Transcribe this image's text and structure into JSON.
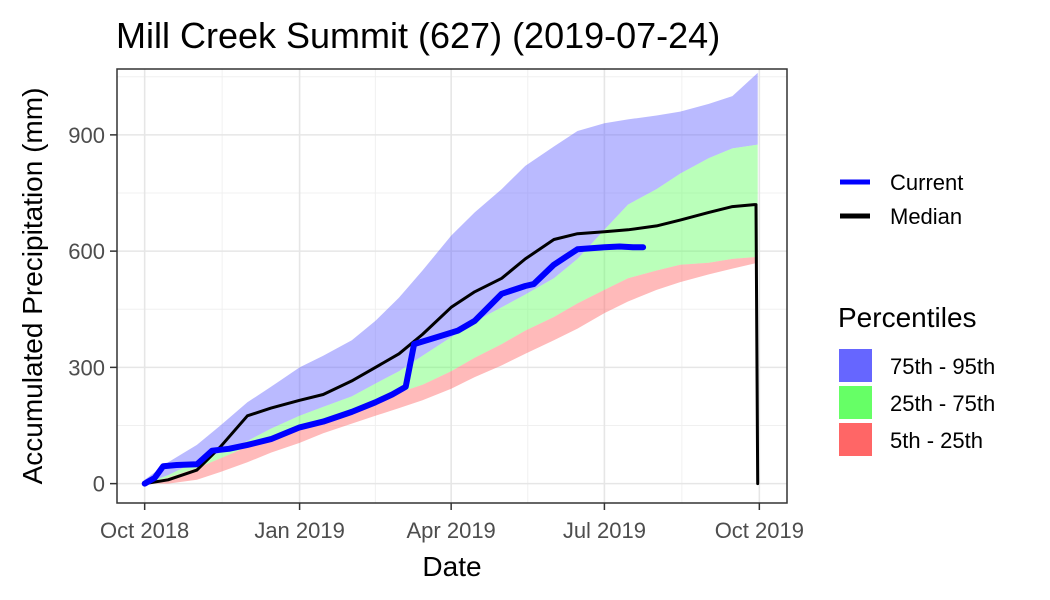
{
  "chart_data": {
    "type": "area",
    "title": "Mill Creek Summit (627) (2019-07-24)",
    "xlabel": "Date",
    "ylabel": "Accumulated Precipitation (mm)",
    "x_range": [
      "2018-10-01",
      "2019-10-01"
    ],
    "y_range": [
      -50,
      1070
    ],
    "x_ticks": [
      {
        "date": "2018-10-01",
        "label": "Oct 2018"
      },
      {
        "date": "2019-01-01",
        "label": "Jan 2019"
      },
      {
        "date": "2019-04-01",
        "label": "Apr 2019"
      },
      {
        "date": "2019-07-01",
        "label": "Jul 2019"
      },
      {
        "date": "2019-10-01",
        "label": "Oct 2019"
      }
    ],
    "y_ticks": [
      0,
      300,
      600,
      900
    ],
    "grid": true,
    "legend_placement": "right",
    "bands": [
      {
        "name": "75th - 95th",
        "color": "#6666ff",
        "x": [
          "2018-10-01",
          "2018-10-15",
          "2018-11-01",
          "2018-11-15",
          "2018-12-01",
          "2018-12-15",
          "2019-01-01",
          "2019-01-15",
          "2019-02-01",
          "2019-02-15",
          "2019-03-01",
          "2019-03-15",
          "2019-04-01",
          "2019-04-15",
          "2019-05-01",
          "2019-05-15",
          "2019-06-01",
          "2019-06-15",
          "2019-07-01",
          "2019-07-15",
          "2019-08-01",
          "2019-08-15",
          "2019-09-01",
          "2019-09-15",
          "2019-09-30"
        ],
        "lower": [
          0,
          22,
          58,
          80,
          110,
          142,
          175,
          198,
          225,
          258,
          290,
          330,
          378,
          418,
          455,
          488,
          530,
          580,
          655,
          720,
          760,
          800,
          840,
          865,
          875
        ],
        "upper": [
          10,
          55,
          100,
          150,
          210,
          250,
          300,
          330,
          370,
          420,
          480,
          550,
          640,
          700,
          760,
          820,
          870,
          910,
          930,
          940,
          950,
          960,
          980,
          1000,
          1060
        ]
      },
      {
        "name": "25th - 75th",
        "color": "#66ff66",
        "x": [
          "2018-10-01",
          "2018-10-15",
          "2018-11-01",
          "2018-11-15",
          "2018-12-01",
          "2018-12-15",
          "2019-01-01",
          "2019-01-15",
          "2019-02-01",
          "2019-02-15",
          "2019-03-01",
          "2019-03-15",
          "2019-04-01",
          "2019-04-15",
          "2019-05-01",
          "2019-05-15",
          "2019-06-01",
          "2019-06-15",
          "2019-07-01",
          "2019-07-15",
          "2019-08-01",
          "2019-08-15",
          "2019-09-01",
          "2019-09-15",
          "2019-09-30"
        ],
        "lower": [
          0,
          15,
          40,
          65,
          95,
          118,
          140,
          160,
          190,
          210,
          235,
          255,
          290,
          325,
          360,
          395,
          430,
          465,
          500,
          530,
          550,
          565,
          570,
          580,
          585
        ],
        "upper": [
          0,
          22,
          58,
          80,
          110,
          142,
          175,
          198,
          225,
          258,
          290,
          330,
          378,
          418,
          455,
          488,
          530,
          580,
          655,
          720,
          760,
          800,
          840,
          865,
          875
        ]
      },
      {
        "name": "5th - 25th",
        "color": "#ff6666",
        "x": [
          "2018-10-01",
          "2018-10-15",
          "2018-11-01",
          "2018-11-15",
          "2018-12-01",
          "2018-12-15",
          "2019-01-01",
          "2019-01-15",
          "2019-02-01",
          "2019-02-15",
          "2019-03-01",
          "2019-03-15",
          "2019-04-01",
          "2019-04-15",
          "2019-05-01",
          "2019-05-15",
          "2019-06-01",
          "2019-06-15",
          "2019-07-01",
          "2019-07-15",
          "2019-08-01",
          "2019-08-15",
          "2019-09-01",
          "2019-09-15",
          "2019-09-30"
        ],
        "lower": [
          0,
          0,
          10,
          30,
          55,
          80,
          105,
          130,
          155,
          175,
          195,
          215,
          245,
          275,
          305,
          335,
          370,
          400,
          440,
          470,
          500,
          520,
          540,
          555,
          570
        ],
        "upper": [
          0,
          15,
          40,
          65,
          95,
          118,
          140,
          160,
          190,
          210,
          235,
          255,
          290,
          325,
          360,
          395,
          430,
          465,
          500,
          530,
          550,
          565,
          570,
          580,
          585
        ]
      }
    ],
    "series": [
      {
        "name": "Current",
        "color": "#0000ff",
        "x": [
          "2018-10-01",
          "2018-10-07",
          "2018-10-12",
          "2018-10-20",
          "2018-11-01",
          "2018-11-10",
          "2018-11-20",
          "2018-12-01",
          "2018-12-15",
          "2019-01-01",
          "2019-01-15",
          "2019-02-01",
          "2019-02-15",
          "2019-02-25",
          "2019-03-05",
          "2019-03-10",
          "2019-03-25",
          "2019-04-05",
          "2019-04-15",
          "2019-05-01",
          "2019-05-15",
          "2019-05-20",
          "2019-06-01",
          "2019-06-15",
          "2019-07-01",
          "2019-07-10",
          "2019-07-18",
          "2019-07-24"
        ],
        "y": [
          0,
          15,
          45,
          48,
          50,
          85,
          90,
          100,
          115,
          145,
          160,
          185,
          210,
          230,
          250,
          360,
          380,
          395,
          420,
          490,
          510,
          515,
          565,
          605,
          610,
          612,
          610,
          610
        ]
      },
      {
        "name": "Median",
        "color": "#000000",
        "x": [
          "2018-10-01",
          "2018-10-15",
          "2018-11-01",
          "2018-11-15",
          "2018-12-01",
          "2018-12-15",
          "2019-01-01",
          "2019-01-15",
          "2019-02-01",
          "2019-02-15",
          "2019-03-01",
          "2019-03-15",
          "2019-04-01",
          "2019-04-15",
          "2019-05-01",
          "2019-05-15",
          "2019-06-01",
          "2019-06-15",
          "2019-07-01",
          "2019-07-15",
          "2019-08-01",
          "2019-08-15",
          "2019-09-01",
          "2019-09-15",
          "2019-09-28",
          "2019-09-29",
          "2019-09-30"
        ],
        "y": [
          0,
          10,
          35,
          95,
          175,
          195,
          215,
          230,
          265,
          300,
          335,
          385,
          455,
          495,
          530,
          580,
          630,
          645,
          650,
          655,
          665,
          680,
          700,
          715,
          720,
          720,
          0
        ]
      }
    ]
  },
  "legend": {
    "lines": [
      {
        "label": "Current",
        "color": "#0000ff"
      },
      {
        "label": "Median",
        "color": "#000000"
      }
    ],
    "percentiles_title": "Percentiles",
    "fills": [
      {
        "label": "75th - 95th",
        "color": "#6666ff"
      },
      {
        "label": "25th - 75th",
        "color": "#66ff66"
      },
      {
        "label": "5th - 25th",
        "color": "#ff6666"
      }
    ]
  }
}
